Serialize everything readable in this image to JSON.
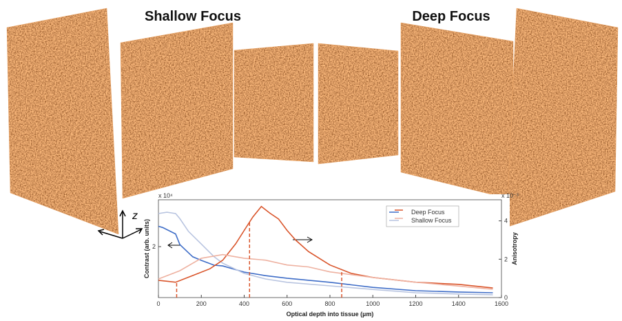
{
  "chart_data": {
    "type": "line",
    "titles": [
      "Shallow Focus",
      "Deep Focus"
    ],
    "axis_symbol": "z",
    "x_label": "Optical depth into tissue (µm)",
    "y_label": "Contrast (arb. units)",
    "y2_label": "Anisotropy",
    "y_multiplier": "x 10⁴",
    "y2_multiplier": "x 10⁻³",
    "xlim": [
      0,
      1600
    ],
    "xticks": [
      0,
      200,
      400,
      600,
      800,
      1000,
      1200,
      1400,
      1600
    ],
    "ylim": [
      0,
      3.84
    ],
    "yticks": [
      2
    ],
    "y2lim": [
      0,
      5.1
    ],
    "y2ticks": [
      0,
      2,
      4
    ],
    "vlines": [
      85,
      425,
      855
    ],
    "legend": [
      {
        "label": "Deep Focus",
        "series": [
          0,
          2
        ]
      },
      {
        "label": "Shallow Focus",
        "series": [
          1,
          3
        ]
      }
    ],
    "series": [
      {
        "color": "#3d6cc7",
        "x": [
          0,
          20,
          80,
          100,
          160,
          200,
          260,
          300,
          400,
          500,
          600,
          800,
          1000,
          1200,
          1400,
          1560
        ],
        "values": [
          2.8,
          2.75,
          2.5,
          2.08,
          1.6,
          1.46,
          1.27,
          1.24,
          1.0,
          0.86,
          0.76,
          0.6,
          0.4,
          0.27,
          0.22,
          0.19
        ]
      },
      {
        "color": "#b8c4e0",
        "x": [
          0,
          40,
          80,
          100,
          140,
          200,
          260,
          300,
          400,
          500,
          600,
          800,
          1000,
          1200,
          1400,
          1560
        ],
        "values": [
          3.3,
          3.35,
          3.3,
          3.1,
          2.6,
          2.1,
          1.6,
          1.35,
          0.95,
          0.73,
          0.6,
          0.46,
          0.32,
          0.19,
          0.14,
          0.11
        ]
      },
      {
        "color": "#d9542a",
        "axis": "y2",
        "x": [
          0,
          80,
          160,
          240,
          300,
          360,
          400,
          440,
          480,
          520,
          560,
          600,
          640,
          700,
          800,
          900,
          1000,
          1200,
          1400,
          1560
        ],
        "values": [
          0.9,
          0.8,
          1.15,
          1.5,
          1.95,
          2.8,
          3.5,
          4.2,
          4.75,
          4.4,
          4.1,
          3.5,
          3.0,
          2.4,
          1.7,
          1.26,
          1.05,
          0.8,
          0.69,
          0.5
        ]
      },
      {
        "color": "#eeb1a0",
        "axis": "y2",
        "x": [
          0,
          100,
          200,
          300,
          400,
          500,
          600,
          700,
          800,
          1000,
          1200,
          1400,
          1560
        ],
        "values": [
          0.97,
          1.4,
          2.05,
          2.24,
          2.05,
          1.95,
          1.7,
          1.6,
          1.34,
          1.05,
          0.8,
          0.6,
          0.43
        ]
      }
    ]
  }
}
